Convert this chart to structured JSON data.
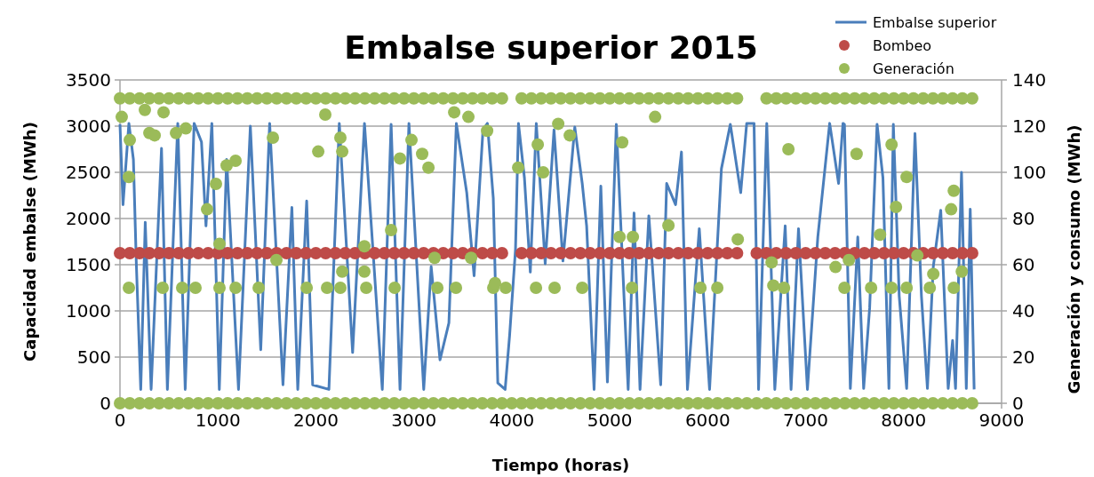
{
  "chart_data": {
    "type": "line",
    "title": "Embalse superior 2015",
    "xlabel": "Tiempo (horas)",
    "ylabel": "Capacidad embalse (MWh)",
    "y2label": "Generación y consumo (MWh)",
    "xlim": [
      0,
      9000
    ],
    "xticks": [
      0,
      1000,
      2000,
      3000,
      4000,
      5000,
      6000,
      7000,
      8000,
      9000
    ],
    "ylim": [
      0,
      3500
    ],
    "yticks": [
      0,
      500,
      1000,
      1500,
      2000,
      2500,
      3000,
      3500
    ],
    "y2lim": [
      0,
      140
    ],
    "y2ticks": [
      0,
      20,
      40,
      60,
      80,
      100,
      120,
      140
    ],
    "grid": "y",
    "legend": "top right",
    "series": [
      {
        "name": "Embalse superior",
        "color": "#4a7ebb",
        "x": [
          0,
          31,
          91,
          137,
          167,
          212,
          258,
          318,
          424,
          484,
          590,
          666,
          757,
          832,
          878,
          938,
          1014,
          1089,
          1210,
          1331,
          1437,
          1528,
          1664,
          1755,
          1815,
          1906,
          1967,
          2133,
          2239,
          2375,
          2496,
          2678,
          2768,
          2859,
          2950,
          3101,
          3177,
          3267,
          3358,
          3434,
          3540,
          3615,
          3706,
          3751,
          3811,
          3857,
          3932,
          3978,
          4038,
          4068,
          4129,
          4189,
          4250,
          4341,
          4431,
          4522,
          4643,
          4719,
          4764,
          4840,
          4909,
          4976,
          5067,
          5188,
          5248,
          5309,
          5399,
          5520,
          5581,
          5672,
          5732,
          5793,
          5914,
          6019,
          6140,
          6231,
          6337,
          6398,
          6473,
          6519,
          6603,
          6685,
          6791,
          6851,
          6927,
          7018,
          7124,
          7245,
          7336,
          7381,
          7396,
          7456,
          7532,
          7592,
          7653,
          7729,
          7789,
          7850,
          7895,
          7955,
          8031,
          8116,
          8182,
          8243,
          8303,
          8379,
          8455,
          8500,
          8530,
          8591,
          8640,
          8680,
          8720
        ],
        "values": [
          3020,
          2150,
          3030,
          2640,
          1510,
          150,
          1960,
          150,
          2760,
          150,
          3030,
          150,
          3030,
          2830,
          1920,
          3030,
          150,
          2640,
          150,
          3000,
          580,
          3030,
          200,
          2120,
          150,
          2190,
          200,
          150,
          3030,
          550,
          3030,
          150,
          3020,
          150,
          3030,
          150,
          1480,
          470,
          870,
          3030,
          2280,
          1380,
          2960,
          3030,
          2220,
          220,
          150,
          740,
          1670,
          3030,
          2440,
          1420,
          3030,
          1510,
          2960,
          1540,
          2990,
          2380,
          1920,
          150,
          2350,
          230,
          3020,
          150,
          2060,
          150,
          2030,
          200,
          2380,
          2150,
          2720,
          150,
          1890,
          150,
          2540,
          3020,
          2280,
          3030,
          3030,
          150,
          3030,
          150,
          1920,
          150,
          1890,
          150,
          1800,
          3030,
          2380,
          3030,
          3020,
          160,
          1800,
          160,
          1030,
          3020,
          2440,
          160,
          3020,
          1160,
          160,
          2920,
          1160,
          160,
          1480,
          2090,
          160,
          680,
          160,
          2500,
          160,
          2100,
          150
        ]
      },
      {
        "name": "Bombeo",
        "type": "scatter",
        "marker": "circle",
        "axis": "y2",
        "color": "#be4b48",
        "x": [
          0,
          100,
          200,
          300,
          400,
          500,
          600,
          700,
          800,
          900,
          1000,
          1100,
          1200,
          1300,
          1400,
          1500,
          1600,
          1700,
          1800,
          1900,
          2000,
          2100,
          2200,
          2300,
          2400,
          2500,
          2600,
          2700,
          2800,
          2900,
          3000,
          3100,
          3200,
          3300,
          3400,
          3500,
          3600,
          3700,
          3800,
          3900,
          4100,
          4200,
          4300,
          4400,
          4500,
          4600,
          4700,
          4800,
          4900,
          5000,
          5100,
          5200,
          5300,
          5400,
          5500,
          5600,
          5700,
          5800,
          5900,
          6000,
          6100,
          6200,
          6300,
          6500,
          6600,
          6700,
          6800,
          6900,
          7000,
          7100,
          7200,
          7300,
          7400,
          7500,
          7600,
          7700,
          7800,
          7900,
          8000,
          8100,
          8200,
          8300,
          8400,
          8500,
          8600,
          8700
        ],
        "values": [
          65,
          65,
          65,
          65,
          65,
          65,
          65,
          65,
          65,
          65,
          65,
          65,
          65,
          65,
          65,
          65,
          65,
          65,
          65,
          65,
          65,
          65,
          65,
          65,
          65,
          65,
          65,
          65,
          65,
          65,
          65,
          65,
          65,
          65,
          65,
          65,
          65,
          65,
          65,
          65,
          65,
          65,
          65,
          65,
          65,
          65,
          65,
          65,
          65,
          65,
          65,
          65,
          65,
          65,
          65,
          65,
          65,
          65,
          65,
          65,
          65,
          65,
          65,
          65,
          65,
          65,
          65,
          65,
          65,
          65,
          65,
          65,
          65,
          65,
          65,
          65,
          65,
          65,
          65,
          65,
          65,
          65,
          65,
          65,
          65,
          65
        ]
      },
      {
        "name": "Generación",
        "type": "scatter",
        "marker": "circle",
        "axis": "y2",
        "color": "#9bbb59",
        "x": [
          0,
          100,
          200,
          300,
          400,
          500,
          600,
          700,
          800,
          900,
          1000,
          1100,
          1200,
          1300,
          1400,
          1500,
          1600,
          1700,
          1800,
          1900,
          2000,
          2100,
          2200,
          2300,
          2400,
          2500,
          2600,
          2700,
          2800,
          2900,
          3000,
          3100,
          3200,
          3300,
          3400,
          3500,
          3600,
          3700,
          3800,
          3900,
          4100,
          4200,
          4300,
          4400,
          4500,
          4600,
          4700,
          4800,
          4900,
          5000,
          5100,
          5200,
          5300,
          5400,
          5500,
          5600,
          5700,
          5800,
          5900,
          6000,
          6100,
          6200,
          6300,
          6600,
          6700,
          6800,
          6900,
          7000,
          7100,
          7200,
          7300,
          7400,
          7500,
          7600,
          7700,
          7800,
          7900,
          8000,
          8100,
          8200,
          8300,
          8400,
          8500,
          8600,
          8700,
          0,
          100,
          200,
          300,
          400,
          500,
          600,
          700,
          800,
          900,
          1000,
          1100,
          1200,
          1300,
          1400,
          1500,
          1600,
          1700,
          1800,
          1900,
          2000,
          2100,
          2200,
          2300,
          2400,
          2500,
          2600,
          2700,
          2800,
          2900,
          3000,
          3100,
          3200,
          3300,
          3400,
          3500,
          3600,
          3700,
          3800,
          3900,
          4000,
          4100,
          4200,
          4300,
          4400,
          4500,
          4600,
          4700,
          4800,
          4900,
          5000,
          5100,
          5200,
          5300,
          5400,
          5500,
          5600,
          5700,
          5800,
          5900,
          6000,
          6100,
          6200,
          6300,
          6400,
          6500,
          6600,
          6700,
          6800,
          6900,
          7000,
          7100,
          7200,
          7300,
          7400,
          7500,
          7600,
          7700,
          7800,
          7900,
          8000,
          8100,
          8200,
          8300,
          8400,
          8500,
          8600,
          8700,
          18,
          91,
          100,
          91,
          254,
          300,
          354,
          445,
          436,
          572,
          672,
          635,
          771,
          889,
          980,
          1016,
          1016,
          1089,
          1180,
          1180,
          1416,
          1561,
          1597,
          1906,
          2024,
          2096,
          2114,
          2250,
          2269,
          2269,
          2250,
          2495,
          2495,
          2514,
          2768,
          2804,
          2858,
          2976,
          3085,
          3149,
          3212,
          3240,
          3430,
          3412,
          3557,
          3584,
          3811,
          3748,
          3829,
          3938,
          4065,
          4247,
          4265,
          4320,
          4437,
          4474,
          4592,
          4719,
          5100,
          5227,
          5236,
          5127,
          5463,
          5599,
          5926,
          6098,
          6307,
          6652,
          6670,
          6779,
          6824,
          7305,
          7396,
          7441,
          7520,
          7668,
          7759,
          7877,
          7877,
          7922,
          8031,
          8031,
          8140,
          8267,
          8303,
          8485,
          8512,
          8512,
          8594
        ],
        "values": [
          132,
          132,
          132,
          132,
          132,
          132,
          132,
          132,
          132,
          132,
          132,
          132,
          132,
          132,
          132,
          132,
          132,
          132,
          132,
          132,
          132,
          132,
          132,
          132,
          132,
          132,
          132,
          132,
          132,
          132,
          132,
          132,
          132,
          132,
          132,
          132,
          132,
          132,
          132,
          132,
          132,
          132,
          132,
          132,
          132,
          132,
          132,
          132,
          132,
          132,
          132,
          132,
          132,
          132,
          132,
          132,
          132,
          132,
          132,
          132,
          132,
          132,
          132,
          132,
          132,
          132,
          132,
          132,
          132,
          132,
          132,
          132,
          132,
          132,
          132,
          132,
          132,
          132,
          132,
          132,
          132,
          132,
          132,
          132,
          132,
          0,
          0,
          0,
          0,
          0,
          0,
          0,
          0,
          0,
          0,
          0,
          0,
          0,
          0,
          0,
          0,
          0,
          0,
          0,
          0,
          0,
          0,
          0,
          0,
          0,
          0,
          0,
          0,
          0,
          0,
          0,
          0,
          0,
          0,
          0,
          0,
          0,
          0,
          0,
          0,
          0,
          0,
          0,
          0,
          0,
          0,
          0,
          0,
          0,
          0,
          0,
          0,
          0,
          0,
          0,
          0,
          0,
          0,
          0,
          0,
          0,
          0,
          0,
          0,
          0,
          0,
          0,
          0,
          0,
          0,
          0,
          0,
          0,
          0,
          0,
          0,
          0,
          0,
          0,
          0,
          0,
          0,
          0,
          0,
          0,
          0,
          0,
          0,
          124,
          98,
          114,
          50,
          127,
          117,
          116,
          126,
          50,
          117,
          119,
          50,
          50,
          84,
          95,
          69,
          50,
          103,
          105,
          50,
          50,
          115,
          62,
          50,
          109,
          125,
          50,
          115,
          109,
          57,
          50,
          68,
          57,
          50,
          75,
          50,
          106,
          114,
          108,
          102,
          63,
          50,
          50,
          126,
          124,
          63,
          50,
          118,
          52,
          50,
          102,
          50,
          112,
          100,
          50,
          121,
          116,
          50,
          72,
          50,
          72,
          113,
          124,
          77,
          50,
          50,
          71,
          61,
          51,
          50,
          110,
          59,
          50,
          62,
          108,
          50,
          73,
          112,
          50,
          85,
          98,
          50,
          64,
          50,
          56,
          84,
          92,
          50,
          57
        ]
      }
    ]
  }
}
